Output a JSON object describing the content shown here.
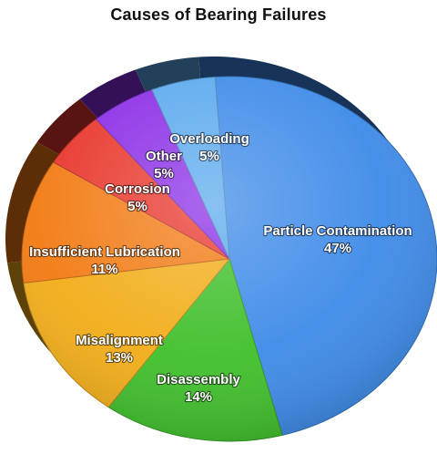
{
  "chart_data": {
    "type": "pie",
    "title": "Causes of Bearing Failures",
    "slices": [
      {
        "label": "Particle Contamination",
        "value": 47,
        "value_label": "47%",
        "color": "#3d8ae8"
      },
      {
        "label": "Disassembly",
        "value": 14,
        "value_label": "14%",
        "color": "#3fbf2a"
      },
      {
        "label": "Misalignment",
        "value": 13,
        "value_label": "13%",
        "color": "#f2ad18"
      },
      {
        "label": "Insufficient Lubrication",
        "value": 11,
        "value_label": "11%",
        "color": "#f27a12"
      },
      {
        "label": "Corrosion",
        "value": 5,
        "value_label": "5%",
        "color": "#e8352a"
      },
      {
        "label": "Other",
        "value": 5,
        "value_label": "5%",
        "color": "#8a2ce6"
      },
      {
        "label": "Overloading",
        "value": 5,
        "value_label": "5%",
        "color": "#5aa9ee"
      }
    ],
    "legend": "none"
  }
}
